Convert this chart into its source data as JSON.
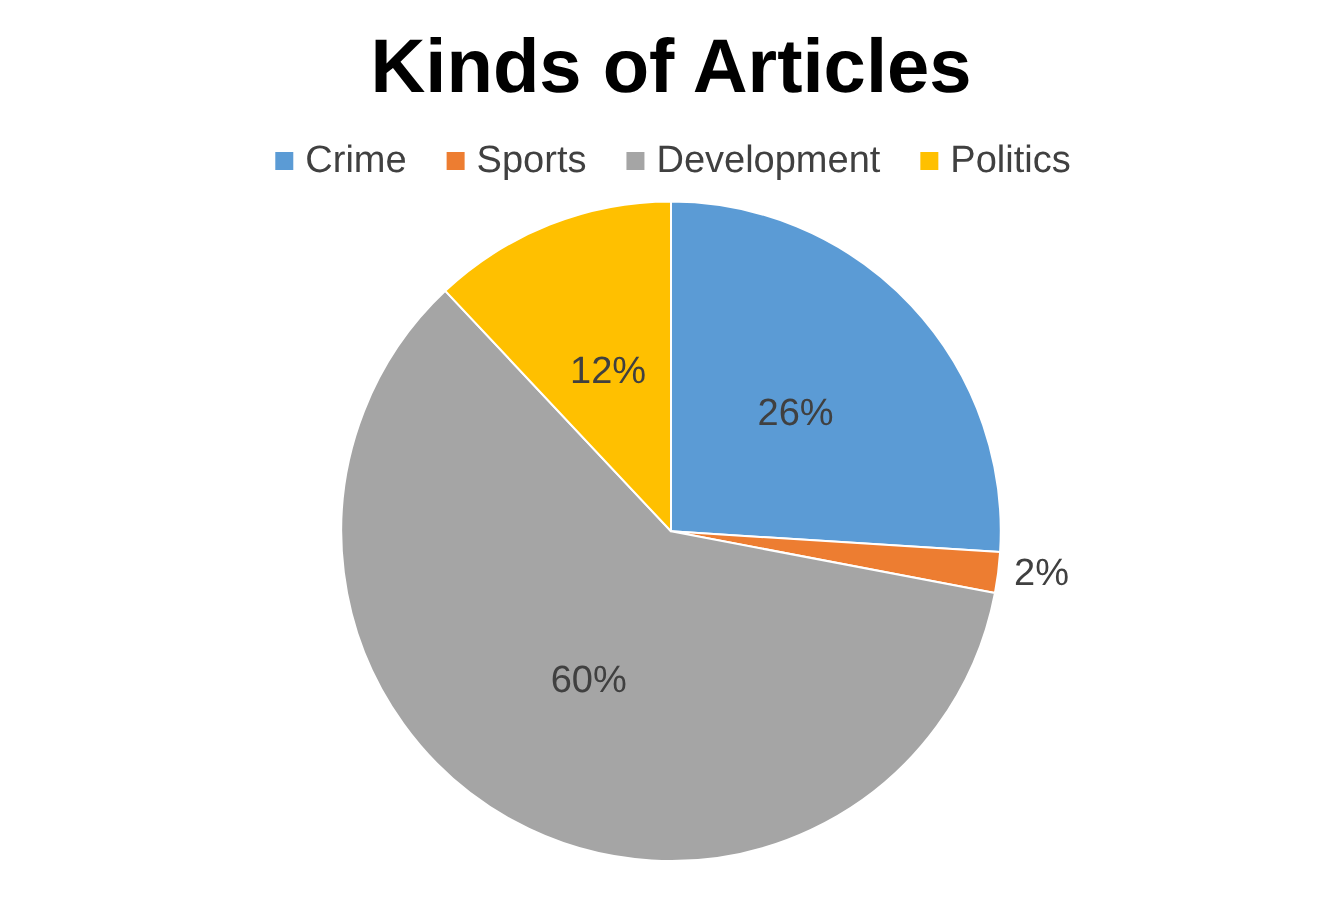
{
  "chart_data": {
    "type": "pie",
    "title": "Kinds of Articles",
    "categories": [
      "Crime",
      "Sports",
      "Development",
      "Politics"
    ],
    "values": [
      26,
      2,
      60,
      12
    ],
    "colors": [
      "#5b9bd5",
      "#ed7d31",
      "#a5a5a5",
      "#ffc000"
    ],
    "value_labels": [
      "26%",
      "2%",
      "60%",
      "12%"
    ],
    "legend": "top"
  }
}
